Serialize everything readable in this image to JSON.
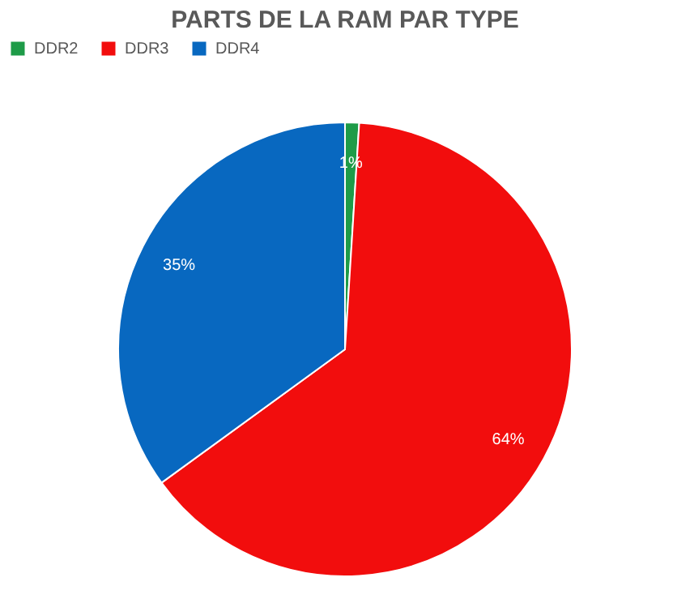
{
  "chart_data": {
    "type": "pie",
    "title": "PARTS DE LA RAM PAR TYPE",
    "categories": [
      "DDR2",
      "DDR3",
      "DDR4"
    ],
    "values": [
      1,
      64,
      35
    ],
    "colors": [
      "#1e9b48",
      "#f20d0d",
      "#0868c0"
    ],
    "value_labels": [
      "1%",
      "64%",
      "35%"
    ],
    "legend": "top"
  }
}
